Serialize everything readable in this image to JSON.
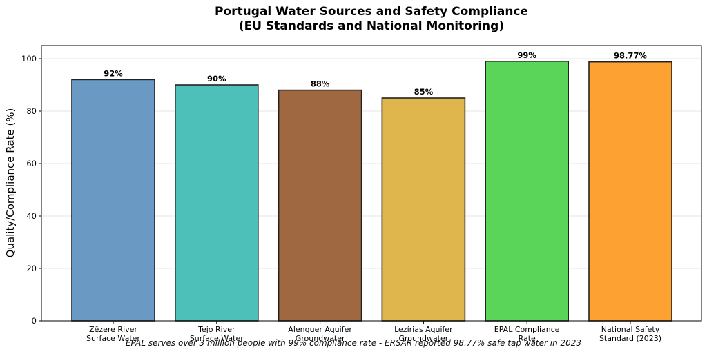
{
  "chart_data": {
    "type": "bar",
    "title": [
      "Portugal Water Sources and Safety Compliance",
      "(EU Standards and National Monitoring)"
    ],
    "xlabel": "",
    "ylabel": "Quality/Compliance Rate (%)",
    "ylim": [
      0,
      105
    ],
    "yticks": [
      0,
      20,
      40,
      60,
      80,
      100
    ],
    "grid": "horizontal",
    "categories": [
      [
        "Zêzere River",
        "Surface Water"
      ],
      [
        "Tejo River",
        "Surface Water"
      ],
      [
        "Alenquer Aquifer",
        "Groundwater"
      ],
      [
        "Lezírias Aquifer",
        "Groundwater"
      ],
      [
        "EPAL Compliance",
        "Rate"
      ],
      [
        "National Safety",
        "Standard (2023)"
      ]
    ],
    "values": [
      92,
      90,
      88,
      85,
      99,
      98.77
    ],
    "value_labels": [
      "92%",
      "90%",
      "88%",
      "85%",
      "99%",
      "98.77%"
    ],
    "colors": [
      "#6a9ac4",
      "#4dc1b9",
      "#a06841",
      "#dfb54e",
      "#5ad55a",
      "#fda232"
    ],
    "annotation": "EPAL serves over 3 million people with 99% compliance rate - ERSAR reported 98.77% safe tap water in 2023"
  }
}
